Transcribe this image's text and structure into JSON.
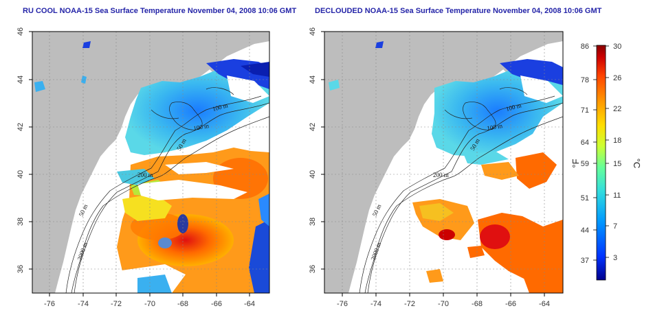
{
  "panels": [
    {
      "title": "RU COOL NOAA-15 Sea Surface Temperature November 04, 2008 10:06 GMT",
      "isobath_labels": [
        "100 m",
        "100 m",
        "50 m",
        "200 m",
        "50 m",
        "2000 m"
      ]
    },
    {
      "title": "DECLOUDED NOAA-15 Sea Surface Temperature November 04, 2008 10:06 GMT",
      "isobath_labels": [
        "100 m",
        "100 m",
        "50 m",
        "200 m",
        "50 m",
        "2000 m"
      ]
    }
  ],
  "axes": {
    "x_ticks": [
      "-76",
      "-74",
      "-72",
      "-70",
      "-68",
      "-66",
      "-64"
    ],
    "y_ticks": [
      "46",
      "44",
      "42",
      "40",
      "38",
      "36"
    ]
  },
  "colorbar": {
    "fahrenheit_labels": [
      "86",
      "78",
      "71",
      "64",
      "59",
      "51",
      "44",
      "37"
    ],
    "celsius_labels": [
      "30",
      "26",
      "22",
      "18",
      "15",
      "11",
      "7",
      "3"
    ],
    "unit_f": "°F",
    "unit_c": "°C",
    "colors": [
      "#00008c",
      "#0033ff",
      "#0099ff",
      "#33dddd",
      "#66ff99",
      "#ccff33",
      "#ffdd00",
      "#ff9900",
      "#ff4400",
      "#cc0000",
      "#880000"
    ]
  },
  "colors": {
    "land": "#bdbdbd",
    "title": "#2424a8",
    "cloud": "#ffffff"
  }
}
